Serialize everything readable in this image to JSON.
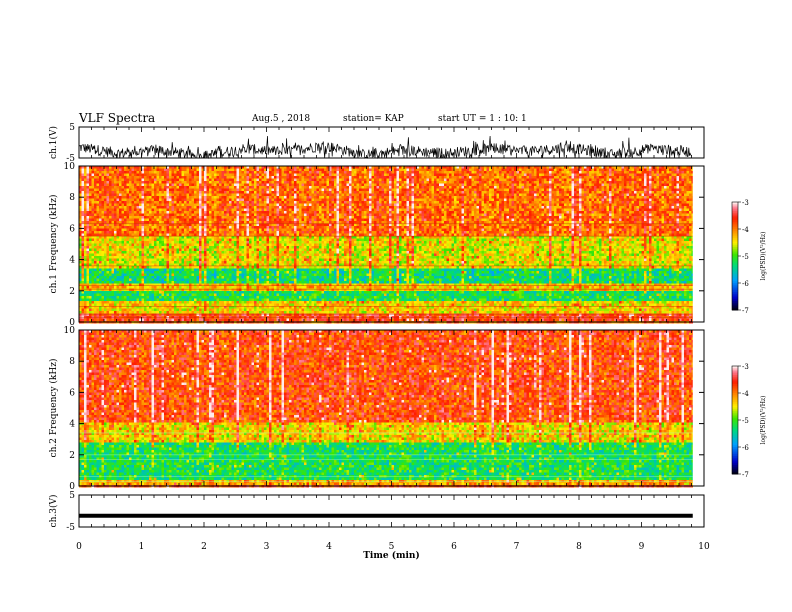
{
  "header": {
    "title": "VLF Spectra",
    "date": "Aug.5 , 2018",
    "station": "station= KAP",
    "start": "start UT = 1 : 10: 1"
  },
  "chart_data": [
    {
      "type": "line",
      "ylabel": "ch.1(V)",
      "yticks": [
        "5",
        "-5"
      ],
      "ylim": [
        -5,
        5
      ],
      "xlim": [
        0,
        10
      ],
      "description_free": true,
      "series": [
        {
          "values_summary": [
            -1.5,
            -3.5,
            -2.5,
            -4.5,
            -2,
            -3,
            -1,
            -4,
            -2.5,
            -3.5,
            -2,
            -3,
            -1.5,
            -4,
            -2,
            -3
          ]
        }
      ]
    },
    {
      "type": "heatmap",
      "ylabel": "ch.1 Frequency (kHz)",
      "yticks": [
        "0",
        "2",
        "4",
        "6",
        "8",
        "10"
      ],
      "ylim": [
        0,
        10
      ],
      "xlim": [
        0,
        10
      ],
      "colorbar": {
        "label": "log(PSD)(V²/Hz)",
        "ticks": [
          "-3",
          "-4",
          "-5",
          "-6",
          "-7"
        ],
        "range": [
          -7,
          -3
        ]
      },
      "bands": [
        {
          "from": 0,
          "to": 0.5,
          "level": -3.6
        },
        {
          "from": 0.5,
          "to": 1.3,
          "level": -4.4
        },
        {
          "from": 1.3,
          "to": 2.0,
          "level": -5.2
        },
        {
          "from": 2.0,
          "to": 2.5,
          "level": -4.3
        },
        {
          "from": 2.5,
          "to": 3.5,
          "level": -5.3
        },
        {
          "from": 3.5,
          "to": 5.5,
          "level": -4.5
        },
        {
          "from": 5.5,
          "to": 10,
          "level": -3.9
        }
      ]
    },
    {
      "type": "heatmap",
      "ylabel": "ch.2 Frequency (kHz)",
      "yticks": [
        "0",
        "2",
        "4",
        "6",
        "8",
        "10"
      ],
      "ylim": [
        0,
        10
      ],
      "xlim": [
        0,
        10
      ],
      "colorbar": {
        "label": "log(PSD)(V²/Hz)",
        "ticks": [
          "-3",
          "-4",
          "-5",
          "-6",
          "-7"
        ],
        "range": [
          -7,
          -3
        ]
      },
      "bands": [
        {
          "from": 0,
          "to": 0.4,
          "level": -4.2
        },
        {
          "from": 0.4,
          "to": 2.8,
          "level": -5.2
        },
        {
          "from": 2.8,
          "to": 4.0,
          "level": -4.4
        },
        {
          "from": 4.0,
          "to": 10,
          "level": -3.7
        }
      ]
    },
    {
      "type": "line",
      "ylabel": "ch.3(V)",
      "yticks": [
        "5",
        "-5"
      ],
      "ylim": [
        -5,
        5
      ],
      "xlim": [
        0,
        10
      ],
      "series": [
        {
          "values_summary": [
            -1.5,
            -1.5
          ]
        }
      ],
      "xlabel": "Time (min)",
      "xticks": [
        "0",
        "1",
        "2",
        "3",
        "4",
        "5",
        "6",
        "7",
        "8",
        "9",
        "10"
      ]
    }
  ]
}
